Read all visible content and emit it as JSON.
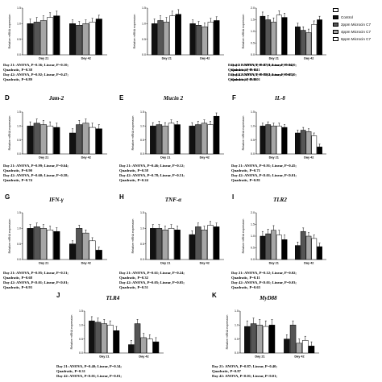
{
  "legend": [
    {
      "label": "",
      "color": "#ffffff"
    },
    {
      "label": "Control",
      "color": "#111111"
    },
    {
      "label": "2ppm Microcin C7",
      "color": "#555555"
    },
    {
      "label": "4ppm Microcin C7",
      "color": "#a6a6a6"
    },
    {
      "label": "6ppm Microcin C7",
      "color": "#ffffff"
    }
  ],
  "chart_data": [
    {
      "letter": "",
      "title": "",
      "type": "bar",
      "ylabel": "Relative mRNA expression",
      "ylim": [
        0,
        1.5
      ],
      "yticks": [
        0,
        0.5,
        1.0,
        1.5
      ],
      "categories": [
        "Day 21",
        "Day 42"
      ],
      "series_values": [
        [
          1.0,
          1.0
        ],
        [
          1.05,
          0.95
        ],
        [
          1.1,
          1.0
        ],
        [
          1.2,
          1.05
        ],
        [
          1.25,
          1.15
        ]
      ],
      "error": [
        0.15,
        0.12
      ],
      "stats": [
        "Day 21: ANOVA, P=0.36; Linear, P=0.10;",
        "Quadratic, P=0.38",
        "Day 42: ANOVA, P=0.92; Linear, P=0.47;",
        "Quadratic, P=0.89"
      ]
    },
    {
      "letter": "",
      "title": "",
      "type": "bar",
      "ylabel": "Relative mRNA expression",
      "ylim": [
        0,
        1.5
      ],
      "yticks": [
        0,
        0.5,
        1.0,
        1.5
      ],
      "categories": [
        "Day 21",
        "Day 42"
      ],
      "series_values": [
        [
          1.0,
          1.0
        ],
        [
          1.1,
          0.95
        ],
        [
          1.05,
          0.9
        ],
        [
          1.25,
          1.05
        ],
        [
          1.3,
          1.1
        ]
      ],
      "error": [
        0.15,
        0.12
      ],
      "stats": [
        "Day 21: ANOVA, P=0.27; Linear, P=0.34;",
        "Quadratic, P=0.16",
        "Day 42: ANOVA, P=0.78; Linear, P=0.67;",
        "Quadratic, P<0.01"
      ]
    },
    {
      "letter": "",
      "title": "",
      "type": "bar",
      "ylabel": "Relative mRNA expression",
      "ylim": [
        0,
        2.0
      ],
      "yticks": [
        0,
        0.5,
        1.0,
        1.5,
        2.0
      ],
      "categories": [
        "Day 21",
        "Day 42"
      ],
      "series_values": [
        [
          1.65,
          1.2
        ],
        [
          1.5,
          1.05
        ],
        [
          1.4,
          0.95
        ],
        [
          1.7,
          1.3
        ],
        [
          1.6,
          1.5
        ]
      ],
      "error": [
        0.18,
        0.15
      ],
      "stats": [
        "Day 21: ANOVA, P=0.16; Linear, P=0.20;",
        "Quadratic, P=0.11",
        "Day 42: ANOVA, P=0.02; Linear, P=0.40;",
        "Quadratic, P<0.01"
      ]
    },
    {
      "letter": "D",
      "title": "Jam-2",
      "type": "bar",
      "ylabel": "Relative mRNA expression",
      "ylim": [
        0,
        1.5
      ],
      "yticks": [
        0,
        0.5,
        1.0,
        1.5
      ],
      "categories": [
        "Day 21",
        "Day 42"
      ],
      "series_values": [
        [
          1.0,
          0.75
        ],
        [
          1.1,
          1.05
        ],
        [
          1.05,
          1.1
        ],
        [
          1.0,
          0.95
        ],
        [
          0.95,
          0.9
        ]
      ],
      "error": [
        0.15,
        0.15
      ],
      "stats": [
        "Day 21: ANOVA, P=0.99; Linear, P=0.64;",
        "Quadratic, P=0.90",
        "Day 42: ANOVA, P=0.60; Linear, P=0.58;",
        "Quadratic, P=0.74"
      ]
    },
    {
      "letter": "E",
      "title": "Mucin 2",
      "type": "bar",
      "ylabel": "Relative mRNA expression",
      "ylim": [
        0,
        1.5
      ],
      "yticks": [
        0,
        0.5,
        1.0,
        1.5
      ],
      "categories": [
        "Day 21",
        "Day 42"
      ],
      "series_values": [
        [
          1.0,
          1.0
        ],
        [
          1.05,
          1.05
        ],
        [
          1.0,
          1.1
        ],
        [
          1.1,
          1.05
        ],
        [
          1.05,
          1.35
        ]
      ],
      "error": [
        0.12,
        0.12
      ],
      "stats": [
        "Day 21: ANOVA, P=0.46; Linear, P=0.12;",
        "Quadratic, P=0.58",
        "Day 42: ANOVA, P=0.78; Linear, P=0.51;",
        "Quadratic, P=0.24"
      ]
    },
    {
      "letter": "F",
      "title": "IL-8",
      "type": "bar",
      "ylabel": "Relative mRNA expression",
      "ylim": [
        0,
        1.5
      ],
      "yticks": [
        0,
        0.5,
        1.0,
        1.5
      ],
      "categories": [
        "Day 21",
        "Day 42"
      ],
      "series_values": [
        [
          1.0,
          0.75
        ],
        [
          1.05,
          0.85
        ],
        [
          1.0,
          0.8
        ],
        [
          1.0,
          0.65
        ],
        [
          0.95,
          0.25
        ]
      ],
      "error": [
        0.1,
        0.1
      ],
      "stats": [
        "Day 21: ANOVA, P=0.91; Linear, P=0.45;",
        "Quadratic, P=0.71",
        "Day 42: ANOVA, P<0.01; Linear, P<0.01;",
        "Quadratic, P=0.81"
      ]
    },
    {
      "letter": "G",
      "title": "IFN-γ",
      "type": "bar",
      "ylabel": "Relative mRNA expression",
      "ylim": [
        0,
        1.5
      ],
      "yticks": [
        0,
        0.5,
        1.0,
        1.5
      ],
      "categories": [
        "Day 21",
        "Day 42"
      ],
      "series_values": [
        [
          1.0,
          0.5
        ],
        [
          1.05,
          1.0
        ],
        [
          1.0,
          0.85
        ],
        [
          0.95,
          0.6
        ],
        [
          0.9,
          0.3
        ]
      ],
      "error": [
        0.12,
        0.1
      ],
      "stats": [
        "Day 21: ANOVA, P=0.95; Linear, P=0.51;",
        "Quadratic, P=0.68",
        "Day 42: ANOVA, P<0.01; Linear, P<0.01;",
        "Quadratic, P=0.93"
      ]
    },
    {
      "letter": "H",
      "title": "TNF-α",
      "type": "bar",
      "ylabel": "Relative mRNA expression",
      "ylim": [
        0,
        1.5
      ],
      "yticks": [
        0,
        0.5,
        1.0,
        1.5
      ],
      "categories": [
        "Day 21",
        "Day 42"
      ],
      "series_values": [
        [
          1.0,
          0.8
        ],
        [
          1.0,
          1.05
        ],
        [
          0.95,
          0.95
        ],
        [
          1.0,
          1.1
        ],
        [
          0.95,
          1.05
        ]
      ],
      "error": [
        0.12,
        0.12
      ],
      "stats": [
        "Day 21: ANOVA, P=0.61; Linear, P=0.24;",
        "Quadratic, P=0.32",
        "Day 42: ANOVA, P=0.05; Linear, P=0.05;",
        "Quadratic, P=0.51"
      ]
    },
    {
      "letter": "I",
      "title": "TLR2",
      "type": "bar",
      "ylabel": "Relative mRNA expression",
      "ylim": [
        0,
        2.0
      ],
      "yticks": [
        0,
        0.5,
        1.0,
        1.5,
        2.0
      ],
      "categories": [
        "Day 21",
        "Day 42"
      ],
      "series_values": [
        [
          1.0,
          0.6
        ],
        [
          1.1,
          1.2
        ],
        [
          1.25,
          1.0
        ],
        [
          1.05,
          0.9
        ],
        [
          0.85,
          0.55
        ]
      ],
      "error": [
        0.2,
        0.15
      ],
      "stats": [
        "Day 21: ANOVA, P=0.12; Linear, P=0.02;",
        "Quadratic, P=0.11",
        "Day 42: ANOVA, P<0.01; Linear, P=0.03;",
        "Quadratic, P=0.63"
      ]
    },
    {
      "letter": "J",
      "title": "TLR4",
      "type": "bar",
      "ylabel": "Relative mRNA expression",
      "ylim": [
        0,
        1.5
      ],
      "yticks": [
        0,
        0.5,
        1.0,
        1.5
      ],
      "categories": [
        "Day 21",
        "Day 42"
      ],
      "series_values": [
        [
          1.15,
          0.3
        ],
        [
          1.1,
          1.05
        ],
        [
          1.05,
          0.55
        ],
        [
          1.0,
          0.5
        ],
        [
          0.8,
          0.4
        ]
      ],
      "error": [
        0.15,
        0.15
      ],
      "stats": [
        "Day 21: ANOVA, P=0.40; Linear, P=0.34;",
        "Quadratic, P=0.31",
        "Day 42: ANOVA, P<0.01; Linear, P=0.01;"
      ]
    },
    {
      "letter": "K",
      "title": "MyD88",
      "type": "bar",
      "ylabel": "Relative mRNA expression",
      "ylim": [
        0,
        1.5
      ],
      "yticks": [
        0,
        0.5,
        1.0,
        1.5
      ],
      "categories": [
        "Day 21",
        "Day 42"
      ],
      "series_values": [
        [
          0.95,
          0.5
        ],
        [
          1.05,
          1.0
        ],
        [
          1.0,
          0.35
        ],
        [
          0.95,
          0.45
        ],
        [
          1.0,
          0.25
        ]
      ],
      "error": [
        0.2,
        0.15
      ],
      "stats": [
        "Day 21: ANOVA, P=0.87; Linear, P=0.40;",
        "Quadratic, P=0.87",
        "Day 42: ANOVA, P<0.01; Linear, P<0.01;"
      ]
    }
  ]
}
